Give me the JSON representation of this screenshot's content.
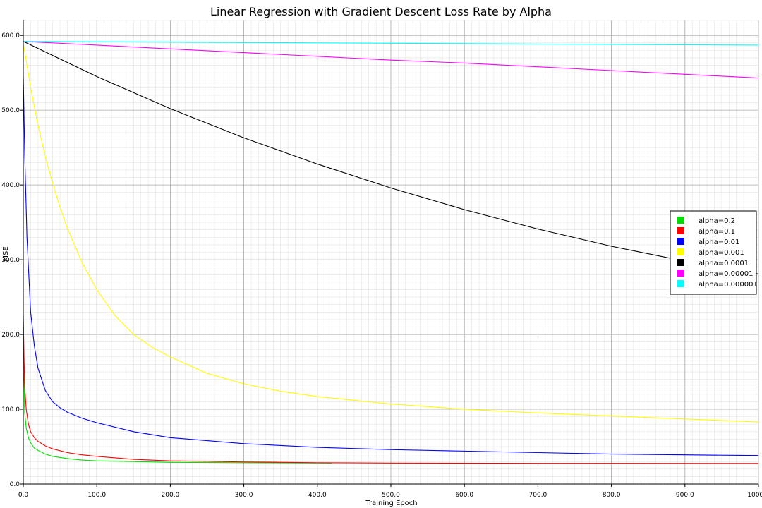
{
  "chart_data": {
    "type": "line",
    "title": "Linear Regression with Gradient Descent Loss Rate by Alpha",
    "xlabel": "Training Epoch",
    "ylabel": "MSE",
    "xlim": [
      0,
      1000
    ],
    "ylim": [
      0,
      620
    ],
    "xticks": [
      "0.0",
      "100.0",
      "200.0",
      "300.0",
      "400.0",
      "500.0",
      "600.0",
      "700.0",
      "800.0",
      "900.0",
      "1000.0"
    ],
    "yticks": [
      "0.0",
      "100.0",
      "200.0",
      "300.0",
      "400.0",
      "500.0",
      "600.0"
    ],
    "grid": true,
    "legend_position": "right",
    "series": [
      {
        "name": "alpha=0.2",
        "color": "#00dd00",
        "x": [
          0,
          1,
          2,
          4,
          7,
          10,
          15,
          20,
          30,
          40,
          60,
          80,
          100,
          150,
          200,
          300,
          420
        ],
        "y": [
          220,
          140,
          95,
          75,
          62,
          55,
          48,
          45,
          40,
          37,
          34,
          32,
          31,
          30,
          29,
          28.5,
          28
        ]
      },
      {
        "name": "alpha=0.1",
        "color": "#ff0000",
        "x": [
          0,
          1,
          2,
          4,
          7,
          10,
          15,
          20,
          30,
          40,
          60,
          80,
          100,
          150,
          200,
          300,
          400,
          500,
          700,
          1000
        ],
        "y": [
          225,
          170,
          130,
          100,
          80,
          70,
          62,
          57,
          51,
          47,
          42,
          39,
          37,
          33,
          31,
          29.5,
          28.5,
          28,
          27.7,
          27.5
        ]
      },
      {
        "name": "alpha=0.01",
        "color": "#0000ff",
        "x": [
          0,
          2,
          5,
          10,
          15,
          20,
          30,
          40,
          50,
          60,
          80,
          100,
          150,
          200,
          300,
          400,
          500,
          600,
          700,
          800,
          900,
          1000
        ],
        "y": [
          545,
          440,
          330,
          230,
          185,
          155,
          125,
          110,
          102,
          96,
          88,
          82,
          70,
          62,
          54,
          49,
          46,
          44,
          42,
          40,
          39,
          38
        ]
      },
      {
        "name": "alpha=0.001",
        "color": "#ffff00",
        "x": [
          0,
          10,
          20,
          30,
          40,
          50,
          60,
          80,
          100,
          125,
          150,
          175,
          200,
          250,
          300,
          350,
          400,
          450,
          500,
          600,
          700,
          800,
          900,
          1000
        ],
        "y": [
          590,
          530,
          480,
          438,
          402,
          370,
          342,
          296,
          260,
          225,
          200,
          183,
          170,
          148,
          134,
          124,
          117,
          112,
          107,
          100,
          95,
          91,
          87,
          83
        ]
      },
      {
        "name": "alpha=0.0001",
        "color": "#000000",
        "x": [
          0,
          100,
          200,
          300,
          400,
          500,
          600,
          700,
          800,
          900,
          1000
        ],
        "y": [
          592,
          545,
          502,
          463,
          428,
          396,
          367,
          341,
          318,
          298,
          281
        ]
      },
      {
        "name": "alpha=0.00001",
        "color": "#ff00ff",
        "x": [
          0,
          100,
          200,
          300,
          400,
          500,
          600,
          700,
          800,
          900,
          1000
        ],
        "y": [
          592,
          587,
          582,
          577,
          572,
          567,
          563,
          558,
          553,
          548,
          543
        ]
      },
      {
        "name": "alpha=0.000001",
        "color": "#00ffff",
        "x": [
          0,
          200,
          400,
          600,
          800,
          1000
        ],
        "y": [
          592,
          591,
          590,
          589,
          588,
          587
        ]
      }
    ]
  }
}
